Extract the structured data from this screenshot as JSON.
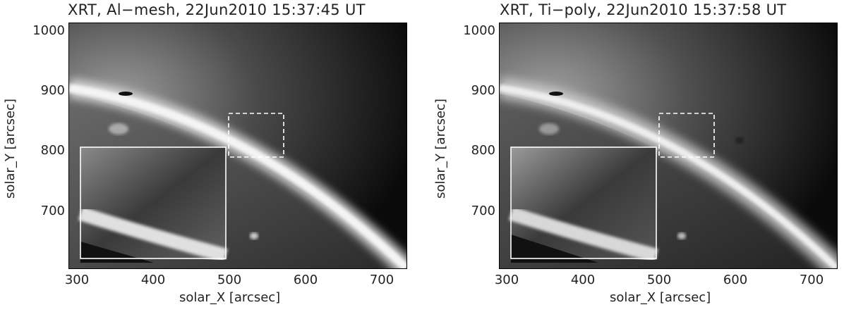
{
  "panels": [
    {
      "title": "XRT, Al−mesh, 22Jun2010  15:37:45 UT",
      "filter": "Al-mesh",
      "xlabel": "solar_X [arcsec]",
      "ylabel": "solar_Y [arcsec]",
      "xticks": [
        "300",
        "400",
        "500",
        "600",
        "700"
      ],
      "yticks": [
        "1000",
        "900",
        "800",
        "700"
      ]
    },
    {
      "title": "XRT, Ti−poly, 22Jun2010  15:37:58 UT",
      "filter": "Ti-poly",
      "xlabel": "solar_X [arcsec]",
      "ylabel": "solar_Y [arcsec]",
      "xticks": [
        "300",
        "400",
        "500",
        "600",
        "700"
      ],
      "yticks": [
        "1000",
        "900",
        "800",
        "700"
      ]
    }
  ]
}
